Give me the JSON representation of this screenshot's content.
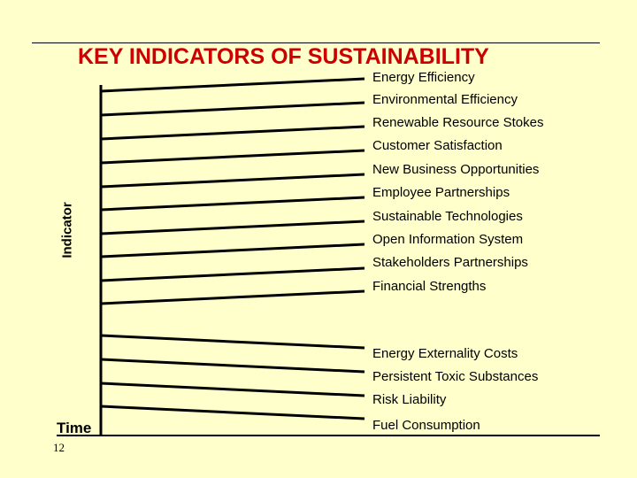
{
  "title": "KEY INDICATORS OF SUSTAINABILITY",
  "y_axis_label": "Indicator",
  "x_axis_label": "Time",
  "page_number": "12",
  "colors": {
    "background": "#ffffcc",
    "title": "#cc0000",
    "lines": "#000000"
  },
  "indicators": [
    {
      "label": "Energy Efficiency",
      "trend": "increasing"
    },
    {
      "label": "Environmental Efficiency",
      "trend": "increasing"
    },
    {
      "label": "Renewable Resource Stokes",
      "trend": "increasing"
    },
    {
      "label": "Customer Satisfaction",
      "trend": "increasing"
    },
    {
      "label": "New Business Opportunities",
      "trend": "increasing"
    },
    {
      "label": "Employee Partnerships",
      "trend": "increasing"
    },
    {
      "label": "Sustainable Technologies",
      "trend": "increasing"
    },
    {
      "label": "Open Information System",
      "trend": "increasing"
    },
    {
      "label": "Stakeholders Partnerships",
      "trend": "increasing"
    },
    {
      "label": "Financial Strengths",
      "trend": "increasing"
    },
    {
      "label": "Energy Externality Costs",
      "trend": "decreasing"
    },
    {
      "label": "Persistent Toxic Substances",
      "trend": "decreasing"
    },
    {
      "label": "Risk Liability",
      "trend": "decreasing"
    },
    {
      "label": "Fuel Consumption",
      "trend": "decreasing"
    }
  ]
}
